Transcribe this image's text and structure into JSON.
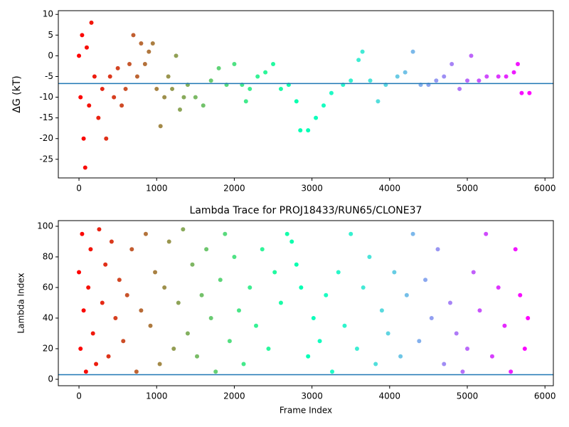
{
  "chart_data": [
    {
      "type": "scatter",
      "ylabel": "ΔG (kT)",
      "colormap": "rainbow",
      "colormap_reversed": true,
      "hline": -6.7,
      "hline_color": "#1f77b4",
      "xlim": [
        -266,
        6108
      ],
      "ylim": [
        -29.5,
        10.9
      ],
      "xticks": [
        0,
        1000,
        2000,
        3000,
        4000,
        5000,
        6000
      ],
      "yticks": [
        -25,
        -20,
        -15,
        -10,
        -5,
        0,
        5,
        10
      ],
      "x": [
        0,
        20,
        40,
        60,
        80,
        100,
        130,
        160,
        200,
        250,
        300,
        350,
        400,
        450,
        500,
        550,
        600,
        650,
        700,
        750,
        800,
        850,
        900,
        950,
        1000,
        1050,
        1100,
        1150,
        1200,
        1250,
        1300,
        1350,
        1400,
        1500,
        1600,
        1700,
        1800,
        1900,
        2000,
        2100,
        2150,
        2200,
        2300,
        2400,
        2500,
        2600,
        2700,
        2800,
        2850,
        2950,
        3050,
        3150,
        3250,
        3400,
        3500,
        3600,
        3650,
        3750,
        3850,
        3950,
        4100,
        4200,
        4300,
        4400,
        4500,
        4600,
        4700,
        4800,
        4900,
        5000,
        5050,
        5150,
        5250,
        5400,
        5500,
        5600,
        5650,
        5700,
        5800
      ],
      "y": [
        0,
        -10,
        5,
        -20,
        -27,
        2,
        -12,
        8,
        -5,
        -15,
        -8,
        -20,
        -5,
        -10,
        -3,
        -12,
        -8,
        -2,
        5,
        -5,
        3,
        -2,
        1,
        3,
        -8,
        -17,
        -10,
        -5,
        -8,
        0,
        -13,
        -10,
        -7,
        -10,
        -12,
        -6,
        -3,
        -7,
        -2,
        -7,
        -11,
        -8,
        -5,
        -4,
        -2,
        -8,
        -7,
        -11,
        -18,
        -18,
        -15,
        -12,
        -9,
        -7,
        -6,
        -1,
        1,
        -6,
        -11,
        -7,
        -5,
        -4,
        1,
        -7,
        -7,
        -6,
        -5,
        -2,
        -8,
        -6,
        0,
        -6,
        -5,
        -5,
        -5,
        -4,
        -2,
        -9,
        -9
      ]
    },
    {
      "type": "scatter",
      "title": "Lambda Trace for PROJ18433/RUN65/CLONE37",
      "xlabel": "Frame Index",
      "ylabel": "Lambda Index",
      "colormap": "rainbow",
      "colormap_reversed": true,
      "hline": 3,
      "hline_color": "#1f77b4",
      "xlim": [
        -266,
        6108
      ],
      "ylim": [
        -4.2,
        103.7
      ],
      "xticks": [
        0,
        1000,
        2000,
        3000,
        4000,
        5000,
        6000
      ],
      "yticks": [
        0,
        20,
        40,
        60,
        80,
        100
      ],
      "x": [
        0,
        20,
        40,
        60,
        90,
        120,
        150,
        180,
        220,
        260,
        300,
        340,
        380,
        420,
        470,
        520,
        570,
        620,
        680,
        740,
        800,
        860,
        920,
        980,
        1040,
        1100,
        1160,
        1220,
        1280,
        1340,
        1400,
        1460,
        1520,
        1580,
        1640,
        1700,
        1760,
        1820,
        1880,
        1940,
        2000,
        2060,
        2120,
        2200,
        2280,
        2360,
        2440,
        2520,
        2600,
        2680,
        2740,
        2800,
        2860,
        2950,
        3020,
        3100,
        3180,
        3260,
        3340,
        3420,
        3500,
        3580,
        3660,
        3740,
        3820,
        3900,
        3980,
        4060,
        4140,
        4220,
        4300,
        4380,
        4460,
        4540,
        4620,
        4700,
        4780,
        4860,
        4940,
        5000,
        5080,
        5160,
        5240,
        5320,
        5400,
        5480,
        5560,
        5620,
        5680,
        5740,
        5780
      ],
      "y": [
        70,
        20,
        95,
        45,
        5,
        60,
        85,
        30,
        10,
        98,
        50,
        75,
        15,
        90,
        40,
        65,
        25,
        55,
        85,
        5,
        45,
        95,
        35,
        70,
        10,
        60,
        90,
        20,
        50,
        98,
        30,
        75,
        15,
        55,
        85,
        40,
        5,
        65,
        95,
        25,
        80,
        45,
        10,
        60,
        35,
        85,
        20,
        70,
        50,
        95,
        90,
        75,
        60,
        15,
        40,
        25,
        55,
        5,
        70,
        35,
        95,
        20,
        60,
        80,
        10,
        45,
        30,
        70,
        15,
        55,
        95,
        25,
        65,
        40,
        85,
        10,
        50,
        30,
        5,
        20,
        70,
        45,
        95,
        15,
        60,
        35,
        5,
        85,
        55,
        20,
        40
      ]
    }
  ]
}
